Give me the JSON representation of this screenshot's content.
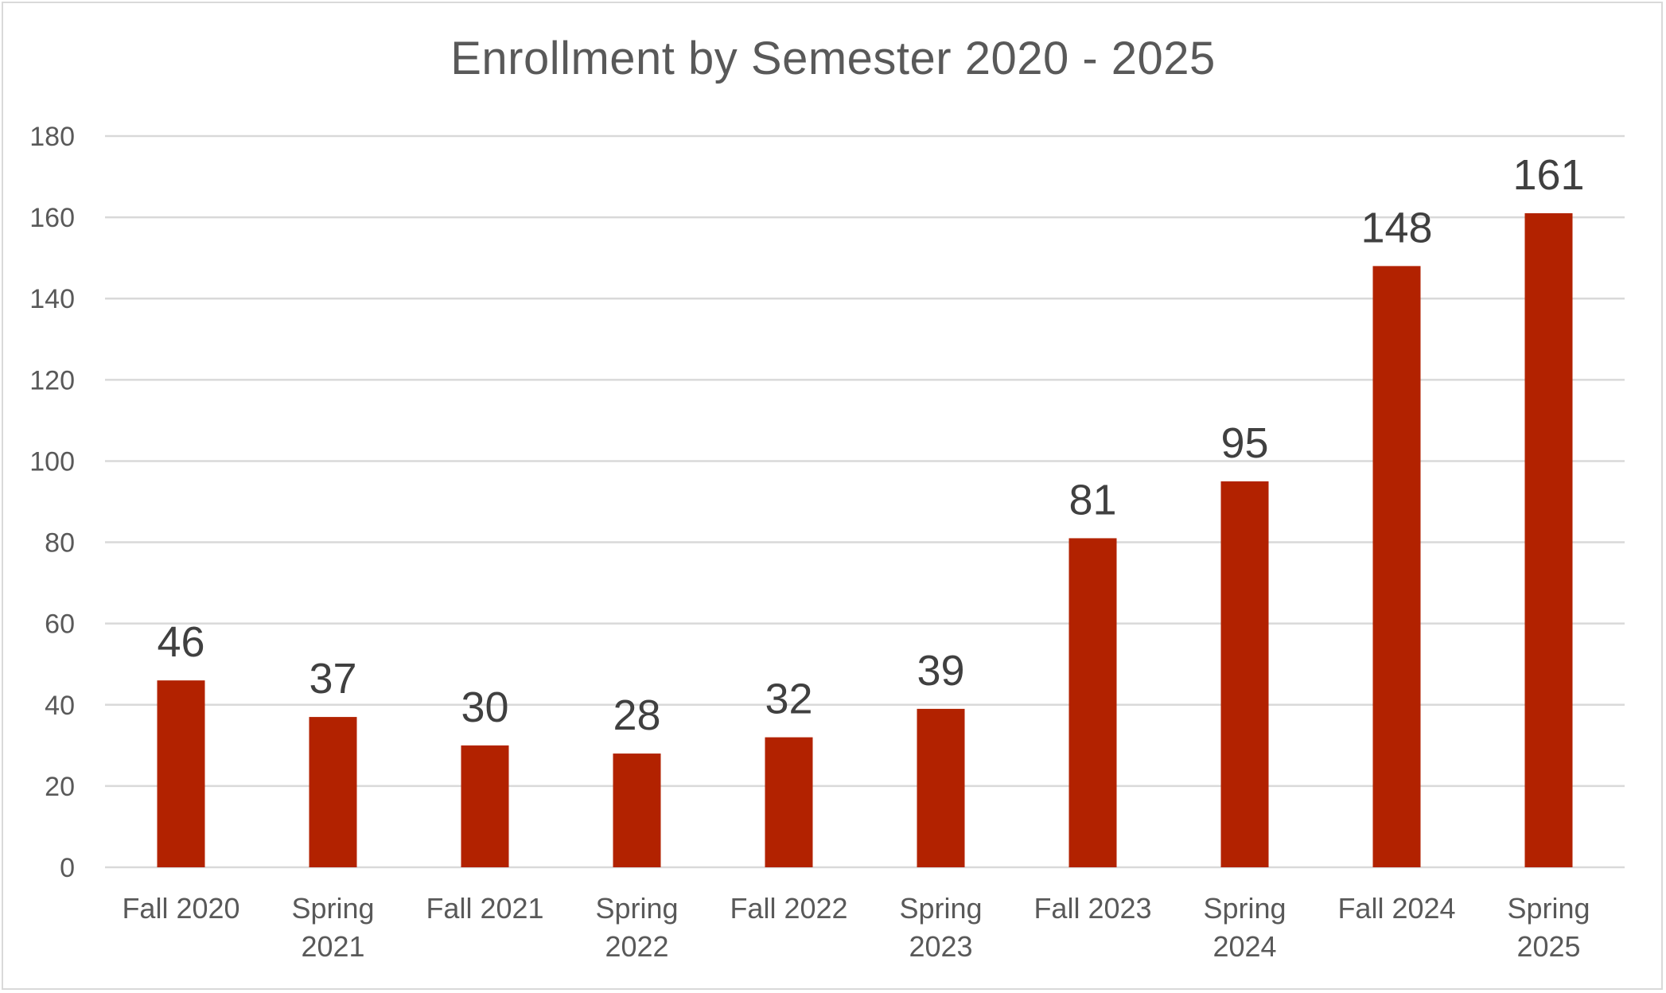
{
  "chart_data": {
    "type": "bar",
    "title": "Enrollment by Semester 2020 - 2025",
    "xlabel": "",
    "ylabel": "",
    "categories": [
      [
        "Fall 2020"
      ],
      [
        "Spring",
        "2021"
      ],
      [
        "Fall 2021"
      ],
      [
        "Spring",
        "2022"
      ],
      [
        "Fall 2022"
      ],
      [
        "Spring",
        "2023"
      ],
      [
        "Fall 2023"
      ],
      [
        "Spring",
        "2024"
      ],
      [
        "Fall 2024"
      ],
      [
        "Spring",
        "2025"
      ]
    ],
    "values": [
      46,
      37,
      30,
      28,
      32,
      39,
      81,
      95,
      148,
      161
    ],
    "data_labels": [
      "46",
      "37",
      "30",
      "28",
      "32",
      "39",
      "81",
      "95",
      "148",
      "161"
    ],
    "ylim": [
      0,
      180
    ],
    "yticks": [
      "0",
      "20",
      "40",
      "60",
      "80",
      "100",
      "120",
      "140",
      "160",
      "180"
    ],
    "ytick_values": [
      0,
      20,
      40,
      60,
      80,
      100,
      120,
      140,
      160,
      180
    ],
    "grid": true,
    "legend": "none",
    "bar_color": "#b22200"
  }
}
